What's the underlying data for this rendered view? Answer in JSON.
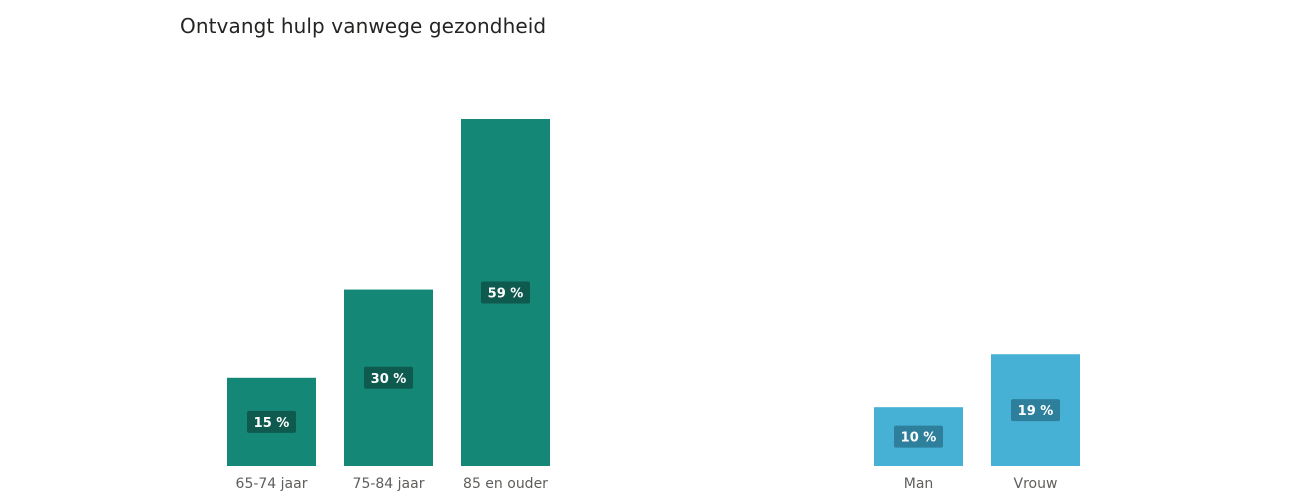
{
  "title": "Ontvangt hulp vanwege gezondheid",
  "chart_data": [
    {
      "type": "bar",
      "categories": [
        "65-74 jaar",
        "75-84 jaar",
        "85 en ouder"
      ],
      "values": [
        15,
        30,
        59
      ],
      "data_labels": [
        "15 %",
        "30 %",
        "59 %"
      ],
      "ylim": [
        0,
        59
      ],
      "grid": false,
      "color": "#148776",
      "label_bg": "#0f5a4f"
    },
    {
      "type": "bar",
      "categories": [
        "Man",
        "Vrouw"
      ],
      "values": [
        10,
        19
      ],
      "data_labels": [
        "10 %",
        "19 %"
      ],
      "ylim": [
        0,
        59
      ],
      "grid": false,
      "color": "#46b1d5",
      "label_bg": "#2e7f9c"
    }
  ]
}
